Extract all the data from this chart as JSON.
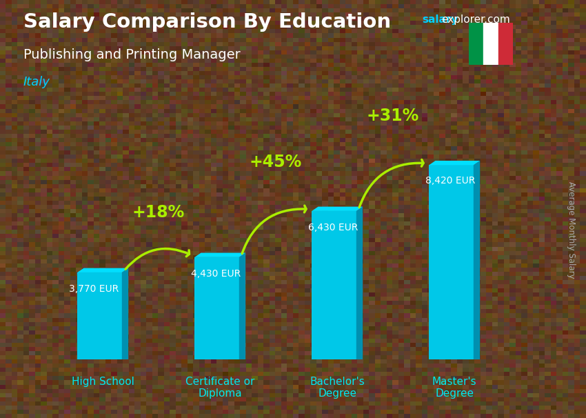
{
  "title": "Salary Comparison By Education",
  "subtitle": "Publishing and Printing Manager",
  "country": "Italy",
  "watermark_salary": "salary",
  "watermark_rest": "explorer.com",
  "ylabel": "Average Monthly Salary",
  "categories": [
    "High School",
    "Certificate or\nDiploma",
    "Bachelor's\nDegree",
    "Master's\nDegree"
  ],
  "values": [
    3770,
    4430,
    6430,
    8420
  ],
  "value_labels": [
    "3,770 EUR",
    "4,430 EUR",
    "6,430 EUR",
    "8,420 EUR"
  ],
  "pct_labels": [
    "+18%",
    "+45%",
    "+31%"
  ],
  "bar_color_face": "#00C8E8",
  "bar_color_side": "#0090B0",
  "bar_color_top": "#00DFFF",
  "bg_color": "#5a3e2b",
  "title_color": "#FFFFFF",
  "subtitle_color": "#FFFFFF",
  "country_color": "#00CFFF",
  "value_label_color": "#FFFFFF",
  "pct_color": "#AAEE00",
  "arrow_color": "#AAEE00",
  "xlabel_color": "#00E8F0",
  "watermark_color1": "#00CFFF",
  "watermark_color2": "#FFFFFF",
  "ylabel_color": "#AAAAAA",
  "ylim": [
    0,
    10500
  ],
  "figsize": [
    8.5,
    6.06
  ],
  "dpi": 100
}
